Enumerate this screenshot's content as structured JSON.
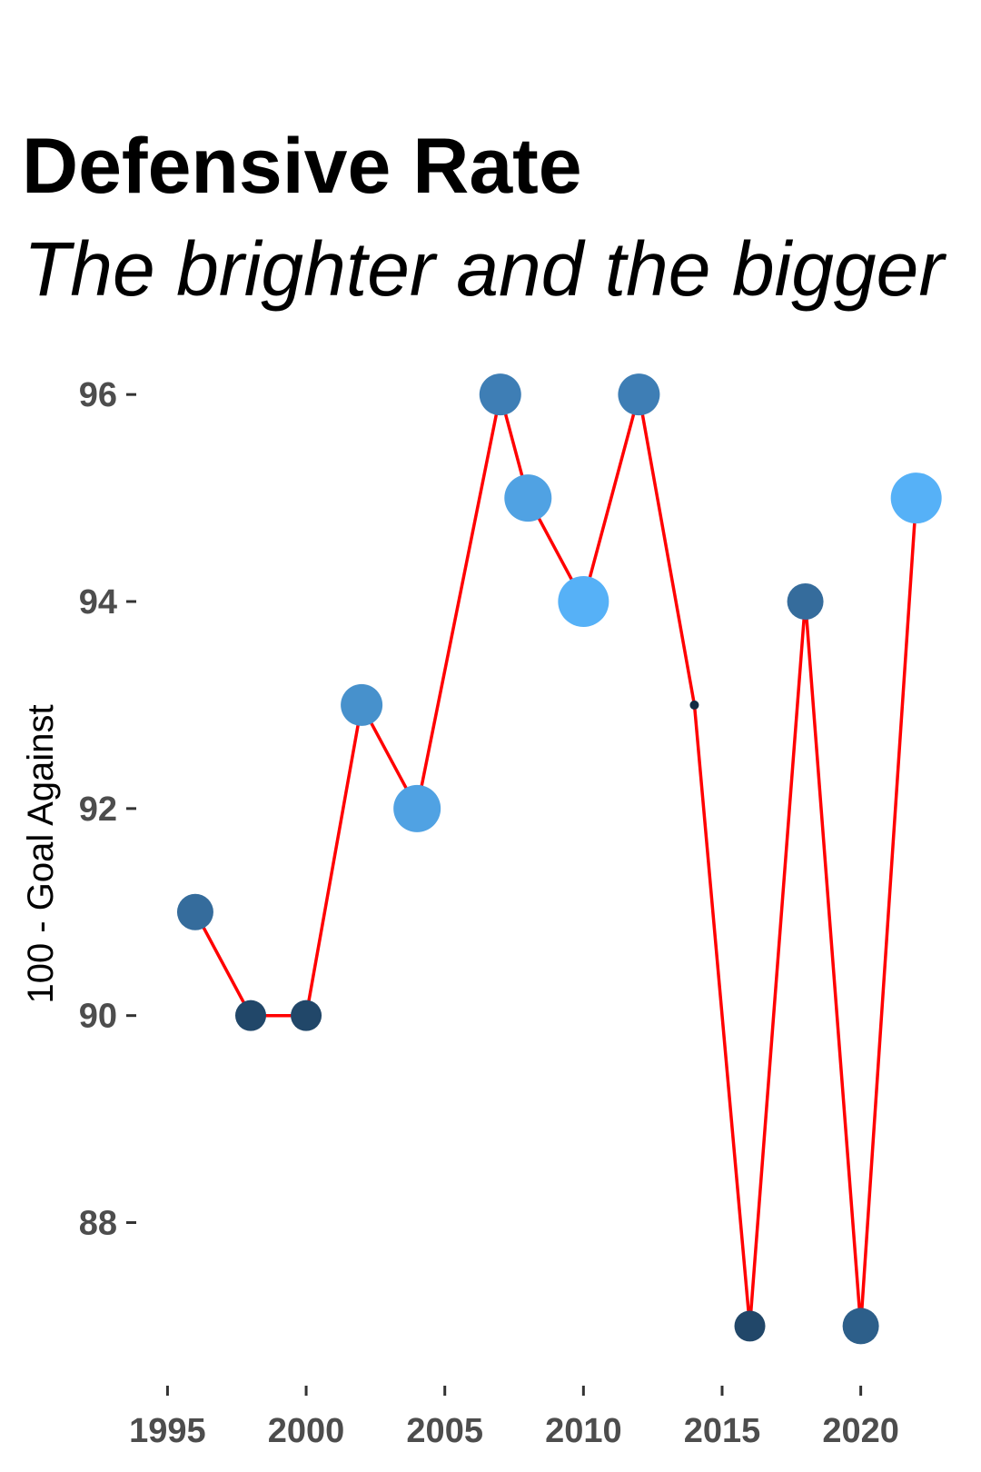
{
  "chart_data": {
    "type": "line",
    "title": "Defensive Rate",
    "subtitle": "The brighter and the bigger",
    "xlabel": "",
    "ylabel": "100 - Goal Against",
    "x": [
      1996,
      1998,
      2000,
      2002,
      2004,
      2007,
      2008,
      2010,
      2012,
      2014,
      2016,
      2018,
      2020,
      2022
    ],
    "values": [
      91,
      90,
      90,
      93,
      92,
      96,
      95,
      94,
      96,
      93,
      87,
      94,
      87,
      95
    ],
    "xticks": [
      "1995",
      "2000",
      "2005",
      "2010",
      "2015",
      "2020"
    ],
    "yticks": [
      "88",
      "90",
      "92",
      "94",
      "96"
    ],
    "xlim": [
      1994.2,
      2024.5
    ],
    "ylim": [
      86.6,
      96.3
    ],
    "grid": false,
    "legend": "none",
    "colors": {
      "line": "#ff0000",
      "point_scale": [
        "#132b43",
        "#56b1f7"
      ],
      "points": [
        "#356c9c",
        "#214769",
        "#214769",
        "#4791cc",
        "#50a2e3",
        "#3e7eb5",
        "#50a2e3",
        "#56b1f7",
        "#3e7eb5",
        "#132b43",
        "#214769",
        "#356c9c",
        "#2d5f8a",
        "#56b1f7"
      ]
    },
    "point_size_rank": [
      3,
      2,
      2,
      4,
      5,
      4,
      5,
      6,
      4,
      1,
      2,
      3,
      3,
      6
    ]
  }
}
